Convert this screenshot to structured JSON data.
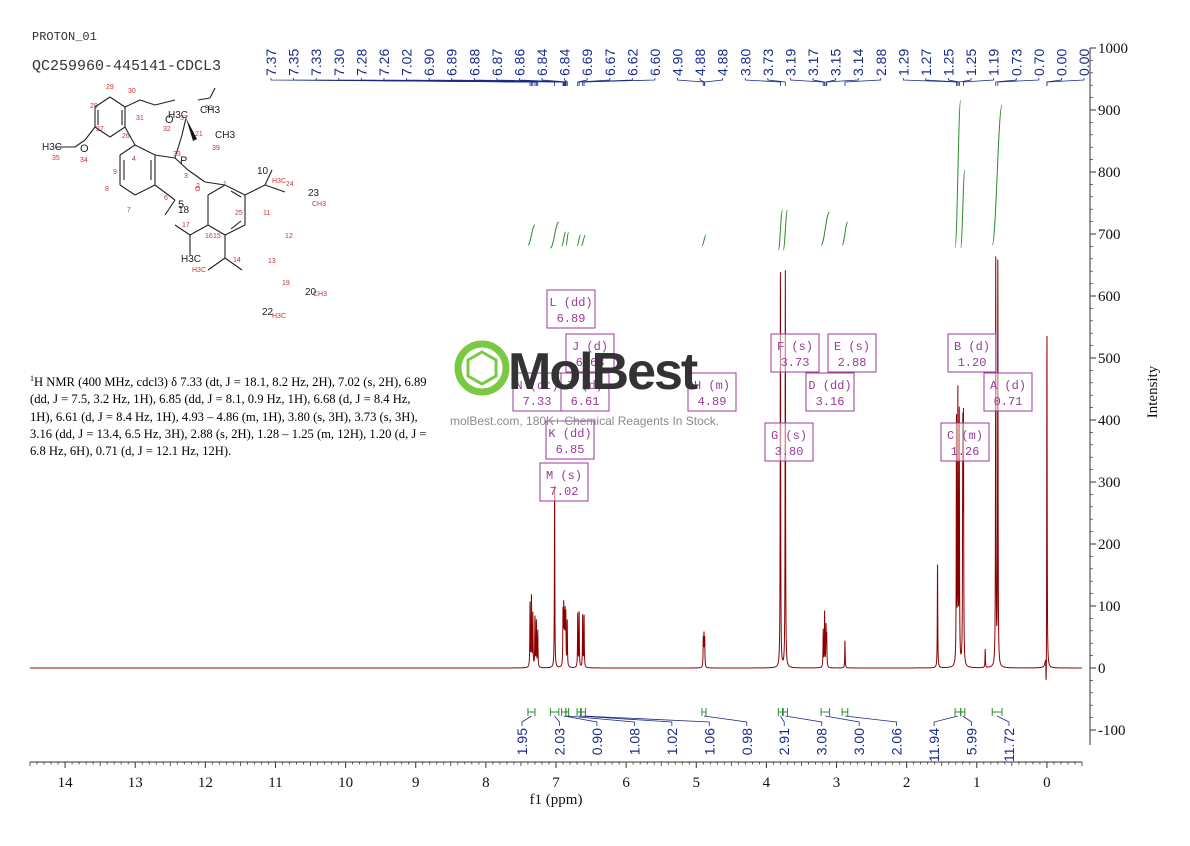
{
  "header": {
    "experiment_id": "PROTON_01",
    "sample_name": "QC259960-445141-CDCL3"
  },
  "description": {
    "prefix": "1",
    "text": "H NMR (400 MHz, cdcl3) δ 7.33 (dt, J = 18.1, 8.2 Hz, 2H), 7.02 (s, 2H), 6.89 (dd, J = 7.5, 3.2 Hz, 1H), 6.85 (dd, J = 8.1, 0.9 Hz, 1H), 6.68 (d, J = 8.4 Hz, 1H), 6.61 (d, J = 8.4 Hz, 1H), 4.93 – 4.86 (m, 1H), 3.80 (s, 3H), 3.73 (s, 3H), 3.16 (dd, J = 13.4, 6.5 Hz, 3H), 2.88 (s, 2H), 1.28 – 1.25 (m, 12H), 1.20 (d, J = 6.8 Hz, 6H), 0.71 (d, J = 12.1 Hz, 12H)."
  },
  "watermark": {
    "logo": "MolBest",
    "url": "molBest.com, 180K+ Chemical Reagents In Stock."
  },
  "colors": {
    "spectrum": "#8b0000",
    "integral": "#2e8b2e",
    "label_box": "#9a3a9a",
    "peak_label": "#1a2a8a",
    "axis": "#333333",
    "logo_green": "#7ac943"
  },
  "structure": {
    "atom_labels": [
      "H3C",
      "35",
      "34",
      "O",
      "27",
      "26",
      "28",
      "29",
      "30",
      "31",
      "O",
      "32",
      "H3C",
      "37",
      "38",
      "CH3",
      "CH3",
      "39",
      "33",
      "P",
      "3",
      "2",
      "4",
      "9",
      "8",
      "7",
      "6",
      "5",
      "O",
      "1",
      "10",
      "H3C",
      "24",
      "23",
      "CH3",
      "25",
      "11",
      "12",
      "13",
      "14",
      "15",
      "16",
      "17",
      "18",
      "H3C",
      "H3C",
      "19",
      "20",
      "CH3",
      "22",
      "H3C",
      "21",
      "36"
    ]
  },
  "chart_data": {
    "type": "line",
    "title": "",
    "xlabel": "f1 (ppm)",
    "ylabel": "Intensity",
    "xlim": [
      14.5,
      -0.5
    ],
    "ylim": [
      -100,
      1000
    ],
    "x_ticks": [
      14,
      13,
      12,
      11,
      10,
      9,
      8,
      7,
      6,
      5,
      4,
      3,
      2,
      1,
      0
    ],
    "y_ticks": [
      -100,
      0,
      100,
      200,
      300,
      400,
      500,
      600,
      700,
      800,
      900,
      1000
    ],
    "peak_labels": [
      "7.37",
      "7.35",
      "7.33",
      "7.30",
      "7.28",
      "7.26",
      "7.02",
      "6.90",
      "6.89",
      "6.88",
      "6.87",
      "6.86",
      "6.84",
      "6.84",
      "6.69",
      "6.67",
      "6.62",
      "6.60",
      "4.90",
      "4.88",
      "4.88",
      "3.80",
      "3.73",
      "3.19",
      "3.17",
      "3.15",
      "3.14",
      "2.88",
      "1.29",
      "1.27",
      "1.25",
      "1.25",
      "1.19",
      "0.73",
      "0.70",
      "0.00",
      "0.00"
    ],
    "peaks": [
      {
        "x": 7.37,
        "h": 105
      },
      {
        "x": 7.35,
        "h": 115
      },
      {
        "x": 7.33,
        "h": 85
      },
      {
        "x": 7.3,
        "h": 80
      },
      {
        "x": 7.28,
        "h": 75
      },
      {
        "x": 7.26,
        "h": 60
      },
      {
        "x": 7.02,
        "h": 300
      },
      {
        "x": 6.9,
        "h": 85
      },
      {
        "x": 6.89,
        "h": 90
      },
      {
        "x": 6.88,
        "h": 70
      },
      {
        "x": 6.87,
        "h": 80
      },
      {
        "x": 6.86,
        "h": 80
      },
      {
        "x": 6.84,
        "h": 75
      },
      {
        "x": 6.69,
        "h": 88
      },
      {
        "x": 6.67,
        "h": 88
      },
      {
        "x": 6.62,
        "h": 85
      },
      {
        "x": 6.6,
        "h": 85
      },
      {
        "x": 4.9,
        "h": 45
      },
      {
        "x": 4.89,
        "h": 50
      },
      {
        "x": 4.88,
        "h": 45
      },
      {
        "x": 3.8,
        "h": 650
      },
      {
        "x": 3.73,
        "h": 640
      },
      {
        "x": 3.19,
        "h": 60
      },
      {
        "x": 3.17,
        "h": 90
      },
      {
        "x": 3.15,
        "h": 65
      },
      {
        "x": 3.14,
        "h": 50
      },
      {
        "x": 2.88,
        "h": 45
      },
      {
        "x": 1.56,
        "h": 170
      },
      {
        "x": 1.29,
        "h": 400
      },
      {
        "x": 1.27,
        "h": 430
      },
      {
        "x": 1.25,
        "h": 410
      },
      {
        "x": 1.2,
        "h": 370
      },
      {
        "x": 1.19,
        "h": 380
      },
      {
        "x": 0.88,
        "h": 30
      },
      {
        "x": 0.73,
        "h": 655
      },
      {
        "x": 0.7,
        "h": 650
      },
      {
        "x": 0.0,
        "h": 550
      }
    ],
    "integrals": [
      {
        "label": "1.95",
        "from": 7.4,
        "to": 7.3
      },
      {
        "label": "2.03",
        "from": 7.08,
        "to": 6.96
      },
      {
        "label": "0.90",
        "from": 6.92,
        "to": 6.86
      },
      {
        "label": "1.08",
        "from": 6.86,
        "to": 6.82
      },
      {
        "label": "1.02",
        "from": 6.7,
        "to": 6.65
      },
      {
        "label": "1.06",
        "from": 6.64,
        "to": 6.58
      },
      {
        "label": "0.98",
        "from": 4.92,
        "to": 4.86
      },
      {
        "label": "2.91",
        "from": 3.83,
        "to": 3.77
      },
      {
        "label": "3.08",
        "from": 3.76,
        "to": 3.7
      },
      {
        "label": "3.00",
        "from": 3.22,
        "to": 3.1
      },
      {
        "label": "2.06",
        "from": 2.92,
        "to": 2.84
      },
      {
        "label": "11.94",
        "from": 1.31,
        "to": 1.23
      },
      {
        "label": "5.99",
        "from": 1.23,
        "to": 1.17
      },
      {
        "label": "11.72",
        "from": 0.78,
        "to": 0.64
      }
    ],
    "multiplet_boxes": [
      {
        "name": "L (dd)",
        "value": "6.89"
      },
      {
        "name": "J (d)",
        "value": "6.68"
      },
      {
        "name": "N (dt)",
        "value": "7.33"
      },
      {
        "name": "I (d)",
        "value": "6.61"
      },
      {
        "name": "K (dd)",
        "value": "6.85"
      },
      {
        "name": "M (s)",
        "value": "7.02"
      },
      {
        "name": "H (m)",
        "value": "4.89"
      },
      {
        "name": "F (s)",
        "value": "3.73"
      },
      {
        "name": "E (s)",
        "value": "2.88"
      },
      {
        "name": "D (dd)",
        "value": "3.16"
      },
      {
        "name": "G (s)",
        "value": "3.80"
      },
      {
        "name": "B (d)",
        "value": "1.20"
      },
      {
        "name": "A (d)",
        "value": "0.71"
      },
      {
        "name": "C (m)",
        "value": "1.26"
      }
    ]
  }
}
